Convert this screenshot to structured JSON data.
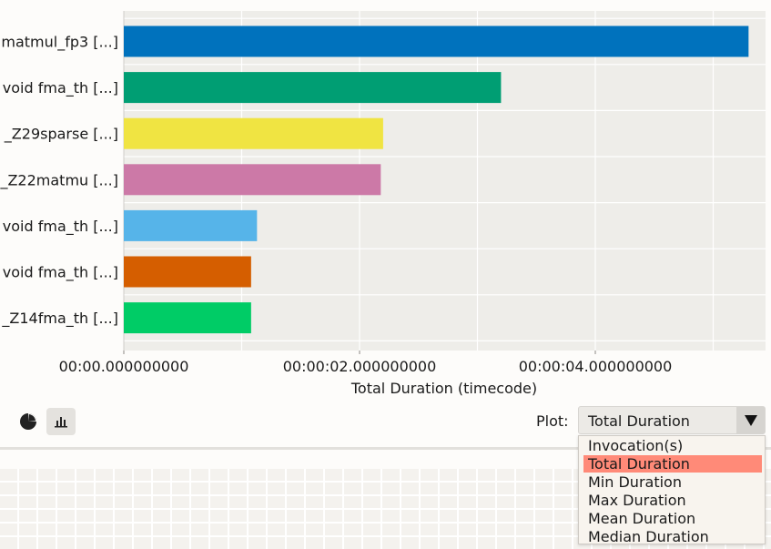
{
  "chart_data": {
    "type": "bar",
    "orientation": "horizontal",
    "categories": [
      "matmul_fp3 [...]",
      "void fma_th [...]",
      "_Z29sparse [...]",
      "_Z22matmu [...]",
      "void fma_th [...]",
      "void fma_th [...]",
      "_Z14fma_th [...]"
    ],
    "values": [
      5.3,
      3.2,
      2.2,
      2.18,
      1.13,
      1.08,
      1.08
    ],
    "colors": [
      "#0072bd",
      "#009e73",
      "#f0e442",
      "#cc79a7",
      "#56b4e9",
      "#d55e00",
      "#00cc66"
    ],
    "xlabel": "Total Duration (timecode)",
    "ticks": [
      0,
      2,
      4
    ],
    "tick_labels": [
      "00:00.000000000",
      "00:00:02.000000000",
      "00:00:04.000000000"
    ],
    "xlim": [
      0,
      5.5
    ],
    "grid": true,
    "background": "#eeede9"
  },
  "controls": {
    "pie_icon": "pie-chart-icon",
    "bar_icon": "bar-chart-icon",
    "plot_label": "Plot:",
    "plot_value": "Total Duration",
    "options": [
      "Invocation(s)",
      "Total Duration",
      "Min Duration",
      "Max Duration",
      "Mean Duration",
      "Median Duration"
    ],
    "selected_index": 1
  }
}
